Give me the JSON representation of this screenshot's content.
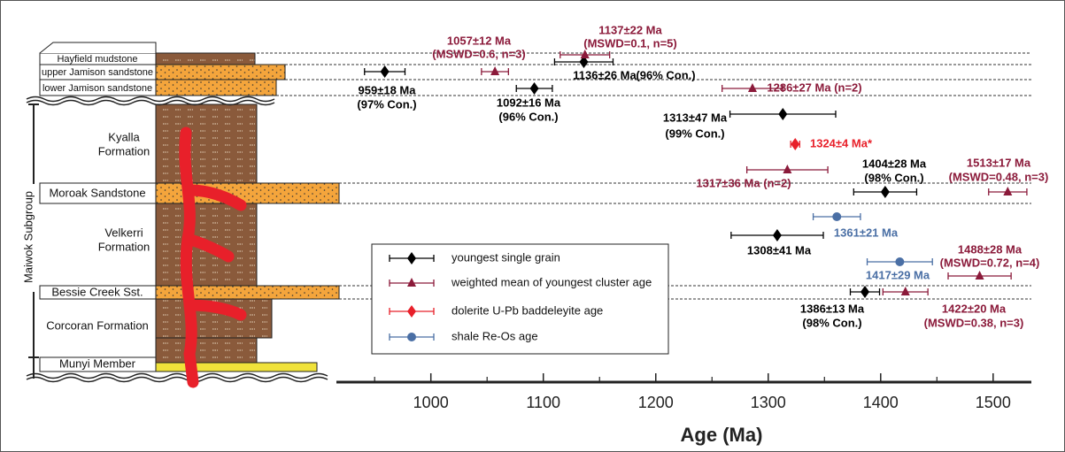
{
  "column": {
    "group": "Maiwok Subgroup",
    "units": [
      [
        "Hayfield mudstone"
      ],
      [
        "upper Jamison sandstone"
      ],
      [
        "lower Jamison sandstone"
      ],
      [
        "Kyalla",
        "Formation"
      ],
      [
        "Moroak Sandstone"
      ],
      [
        "Velkerri",
        "Formation"
      ],
      [
        "Bessie Creek Sst."
      ],
      [
        "Corcoran Formation"
      ],
      [
        "Munyi Member"
      ]
    ]
  },
  "chart_data": {
    "type": "scatter",
    "x_label": "Age (Ma)",
    "xlim": [
      916,
      1534
    ],
    "xticks": [
      1000,
      1100,
      1200,
      1300,
      1400,
      1500
    ],
    "minor_xticks": [
      950,
      1050,
      1150,
      1250,
      1350,
      1450
    ],
    "series": [
      {
        "name": "youngest single grain",
        "color": "#000000",
        "marker": "diamond",
        "values": [
          959,
          1092,
          1136,
          1313,
          1404,
          1308,
          1386
        ],
        "errors": [
          18,
          16,
          26,
          47,
          28,
          41,
          13
        ],
        "value_labels": [
          "959±18 Ma",
          "1092±16 Ma",
          "1136±26 Ma",
          "1313±47 Ma",
          "1404±28 Ma",
          "1308±41 Ma",
          "1386±13 Ma"
        ],
        "notes": [
          "(97% Con.)",
          "(96% Con.)",
          "(96% Con.)",
          "(99% Con.)",
          "(98% Con.)",
          null,
          "(98% Con.)"
        ]
      },
      {
        "name": "weighted mean of youngest cluster age",
        "color": "#8b1a3a",
        "marker": "triangle",
        "values": [
          1057,
          1137,
          1286,
          1317,
          1513,
          1488,
          1422
        ],
        "errors": [
          12,
          22,
          27,
          36,
          17,
          28,
          20
        ],
        "value_labels": [
          "1057±12 Ma",
          "1137±22 Ma",
          "1286±27 Ma (n=2)",
          "1317±36 Ma (n=2)",
          "1513±17 Ma",
          "1488±28 Ma",
          "1422±20 Ma"
        ],
        "notes": [
          "(MSWD=0.6, n=3)",
          "(MSWD=0.1, n=5)",
          null,
          null,
          "(MSWD=0.48, n=3)",
          "(MSWD=0.72, n=4)",
          "(MSWD=0.38, n=3)"
        ]
      },
      {
        "name": "dolerite U-Pb baddeleyite age",
        "color": "#e8202a",
        "marker": "diamond",
        "values": [
          1324
        ],
        "errors": [
          4
        ],
        "value_labels": [
          "1324±4 Ma*"
        ],
        "notes": [
          null
        ]
      },
      {
        "name": "shale Re-Os age",
        "color": "#4a6fa5",
        "marker": "circle",
        "values": [
          1361,
          1417
        ],
        "errors": [
          21,
          29
        ],
        "value_labels": [
          "1361±21 Ma",
          "1417±29 Ma"
        ],
        "notes": [
          null,
          null
        ]
      }
    ]
  }
}
